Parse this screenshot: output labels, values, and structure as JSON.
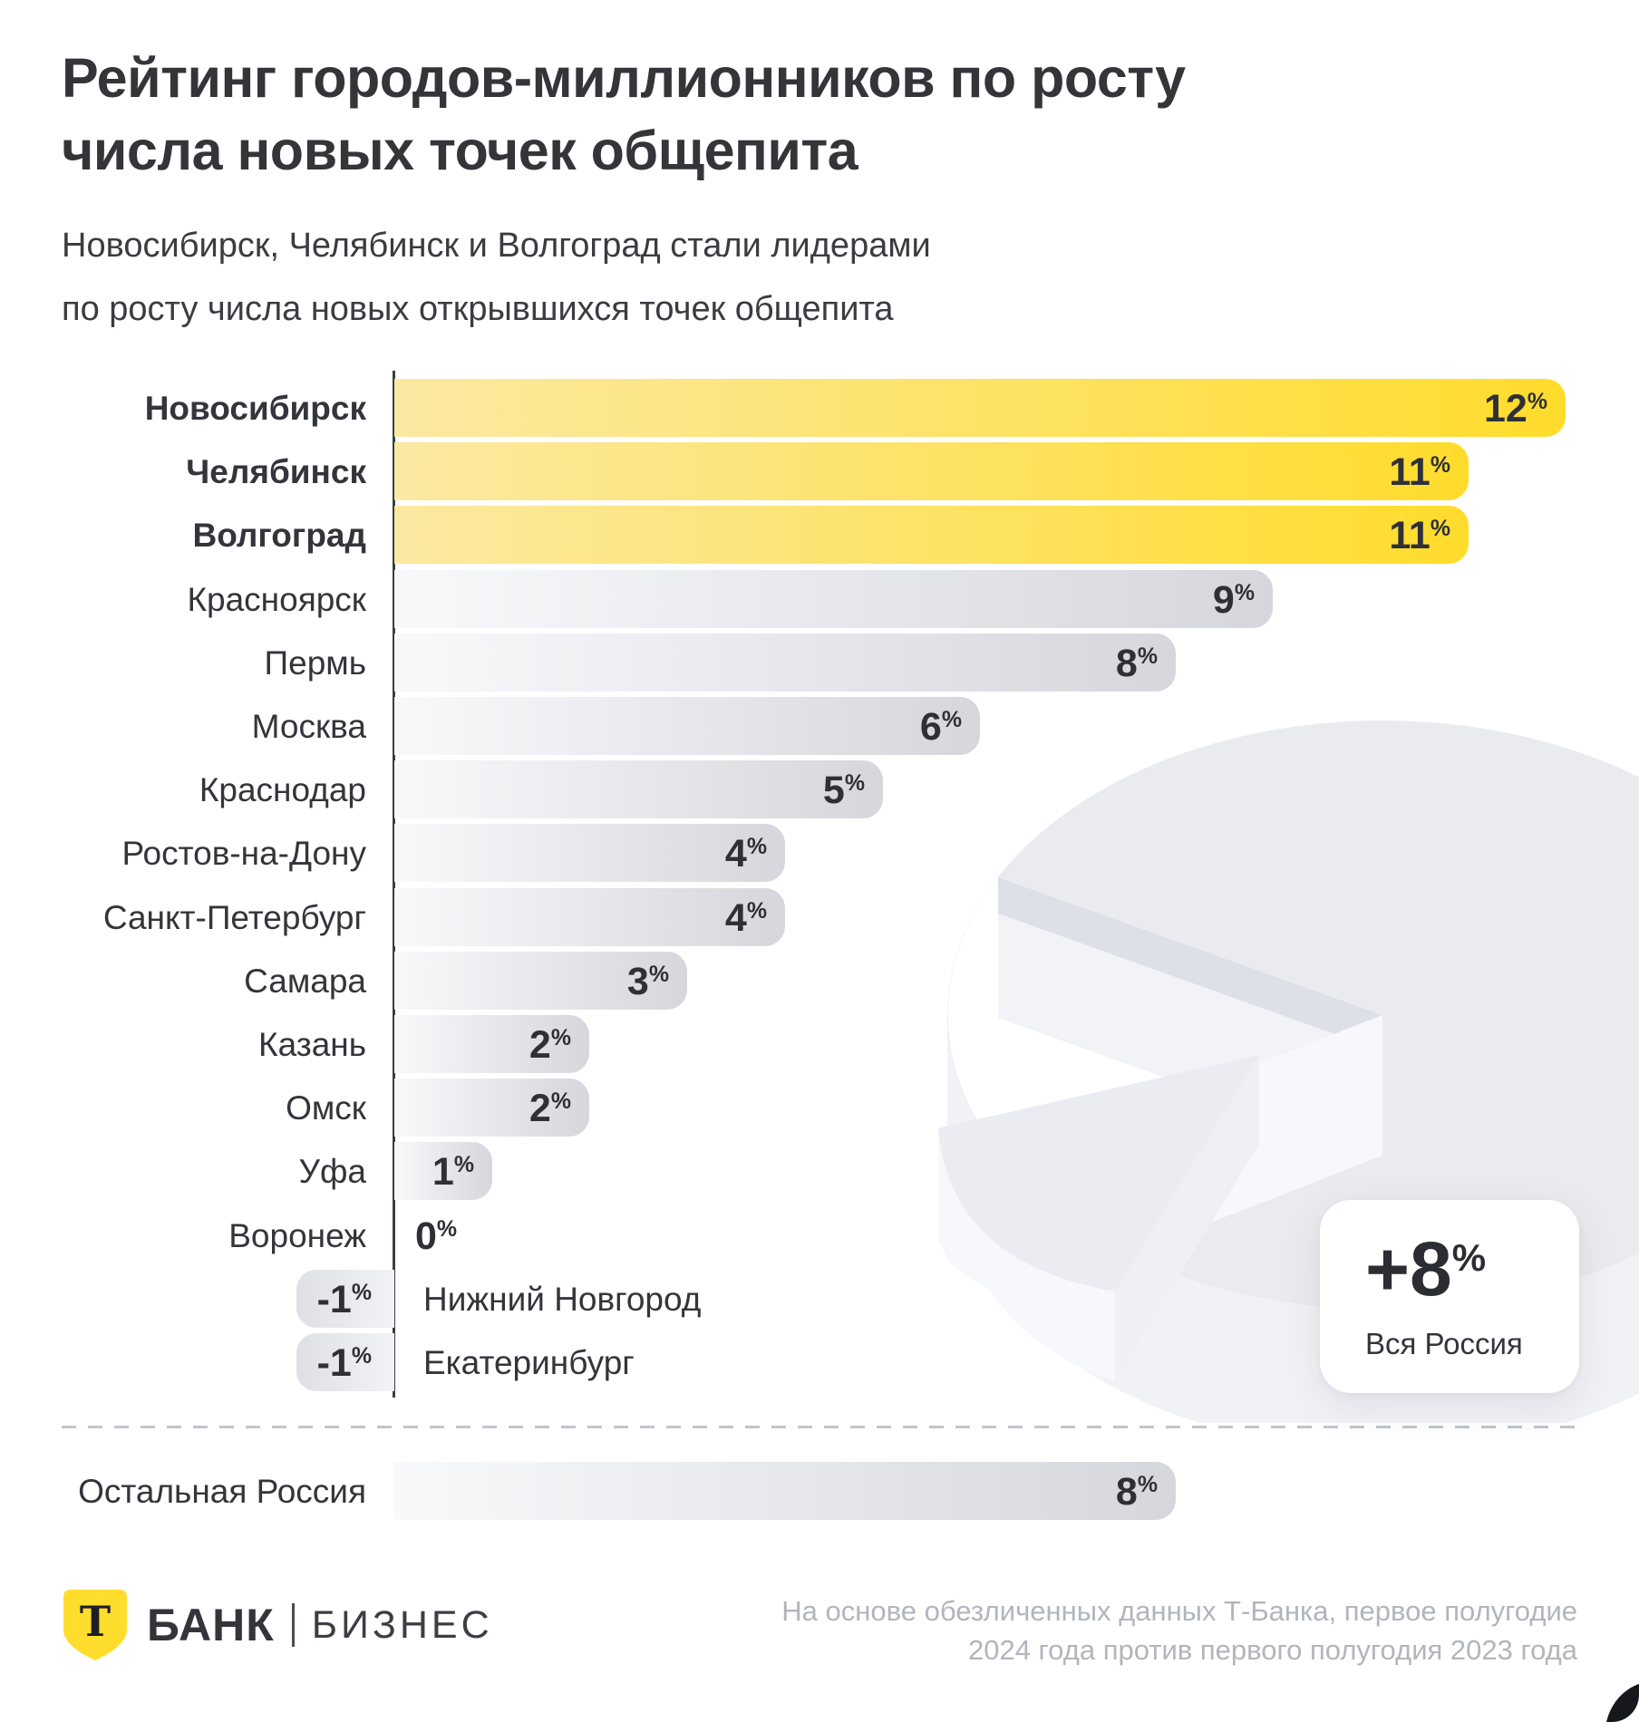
{
  "page": {
    "title_line1": "Рейтинг городов-миллионников по росту",
    "title_line2": "числа новых точек общепита",
    "subtitle_line1": "Новосибирск, Челябинск и Волгоград стали лидерами",
    "subtitle_line2": "по росту числа новых открывшихся точек общепита"
  },
  "chart_data": {
    "type": "bar",
    "orientation": "horizontal",
    "title": "Рейтинг городов-миллионников по росту числа новых точек общепита",
    "unit": "%",
    "xlim": [
      -1,
      12
    ],
    "grid": false,
    "legend": false,
    "categories": [
      "Новосибирск",
      "Челябинск",
      "Волгоград",
      "Красноярск",
      "Пермь",
      "Москва",
      "Краснодар",
      "Ростов-на-Дону",
      "Санкт-Петербург",
      "Самара",
      "Казань",
      "Омск",
      "Уфа",
      "Воронеж",
      "Нижний Новгород",
      "Екатеринбург"
    ],
    "values": [
      12,
      11,
      11,
      9,
      8,
      6,
      5,
      4,
      4,
      3,
      2,
      2,
      1,
      0,
      -1,
      -1
    ],
    "highlighted_categories": [
      "Новосибирск",
      "Челябинск",
      "Волгоград"
    ],
    "separate_row": {
      "label": "Остальная Россия",
      "value": 8
    },
    "callout": {
      "value": "+8",
      "unit": "%",
      "label": "Вся Россия"
    }
  },
  "colors": {
    "accent_yellow": "#FFDD2D",
    "yellow_gradient_start": "#FBE9A2",
    "grey_gradient_start": "#F8F9FB",
    "grey_gradient_end": "#D5D7DC",
    "text_dark": "#2E3036",
    "muted_text": "#B2B5BC"
  },
  "footer": {
    "logo_letter": "Т",
    "logo_bank": "БАНК",
    "logo_business": "БИЗНЕС",
    "note_line1": "На основе обезличенных данных Т-Банка, первое полугодие",
    "note_line2": "2024 года против первого полугодия 2023 года"
  }
}
